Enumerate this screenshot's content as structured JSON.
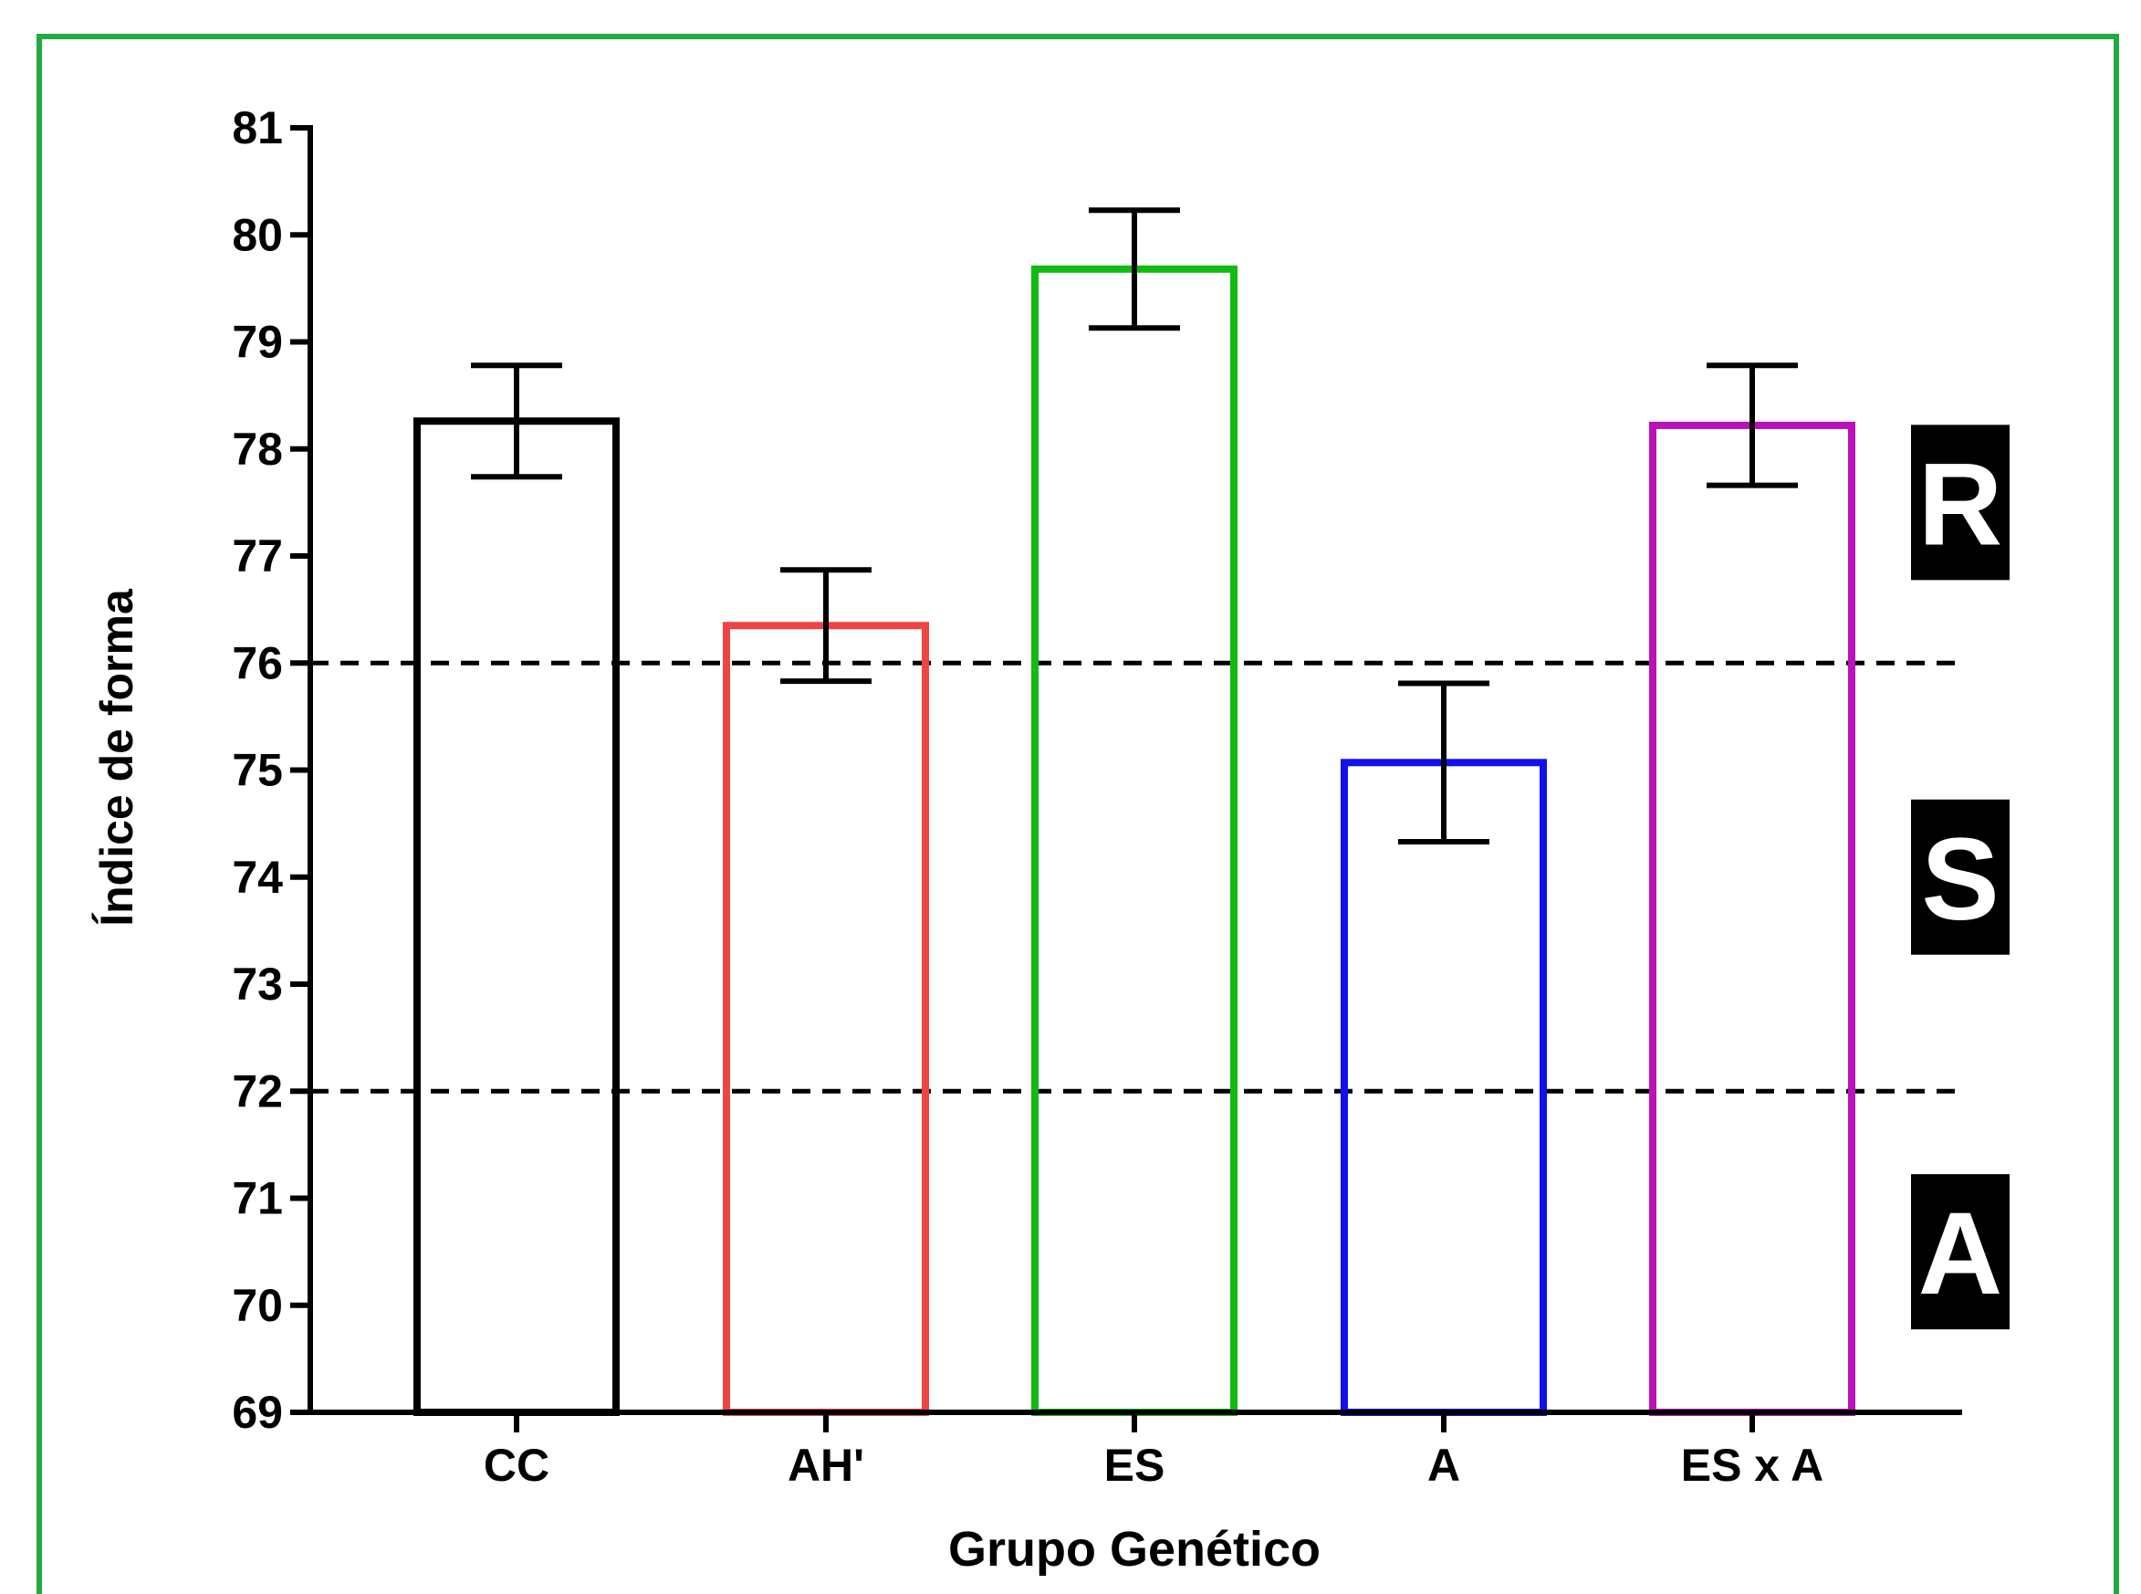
{
  "chart_data": {
    "type": "bar",
    "categories": [
      "CC",
      "AH'",
      "ES",
      "A",
      "ES x A"
    ],
    "values": [
      78.26,
      76.35,
      79.68,
      75.07,
      78.22
    ],
    "errors": [
      0.52,
      0.52,
      0.55,
      0.74,
      0.56
    ],
    "colors": [
      "#000000",
      "#ee4444",
      "#11bb11",
      "#1111ee",
      "#bb11bb"
    ],
    "xlabel": "Grupo Genético",
    "ylabel": "Índice de forma",
    "ylim": [
      69,
      81
    ],
    "yticks": [
      "69",
      "70",
      "71",
      "72",
      "73",
      "74",
      "75",
      "76",
      "77",
      "78",
      "79",
      "80",
      "81"
    ],
    "reference_lines": [
      76,
      72
    ],
    "zones": [
      {
        "label": "R",
        "y": 77.5
      },
      {
        "label": "S",
        "y": 74.0
      },
      {
        "label": "A",
        "y": 70.5
      }
    ],
    "grid": false,
    "frame_color": "#22aa44"
  }
}
